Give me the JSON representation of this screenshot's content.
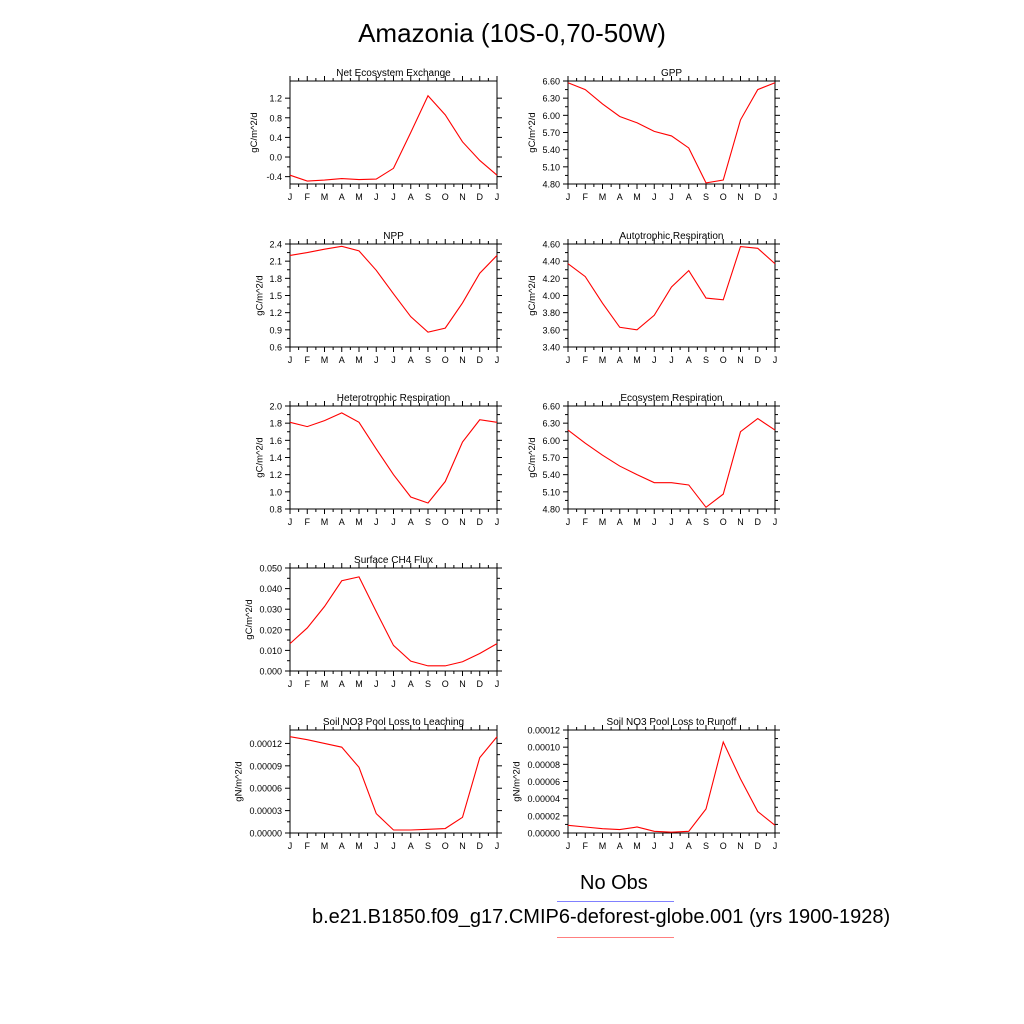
{
  "title": "Amazonia (10S-0,70-50W)",
  "legend": {
    "obs_label": "No Obs",
    "run_label": "b.e21.B1850.f09_g17.CMIP6-deforest-globe.001 (yrs 1900-1928)",
    "obs_color": "#8080ff",
    "run_color": "#ff7f7f"
  },
  "line_color": "#ff0000",
  "chart_data": [
    {
      "type": "line",
      "title": "Net Ecosystem Exchange",
      "ylabel": "gC/m^2/d",
      "xlabel": "",
      "categories": [
        "J",
        "F",
        "M",
        "A",
        "M",
        "J",
        "J",
        "A",
        "S",
        "O",
        "N",
        "D",
        "J"
      ],
      "yticks": [
        -0.4,
        0.0,
        0.4,
        0.8,
        1.2
      ],
      "ytick_labels": [
        "-0.4",
        "0.0",
        "0.4",
        "0.8",
        "1.2"
      ],
      "ylim": [
        -0.55,
        1.55
      ],
      "series": [
        {
          "name": "b.e21.B1850.f09_g17.CMIP6-deforest-globe.001",
          "values": [
            -0.37,
            -0.49,
            -0.47,
            -0.44,
            -0.46,
            -0.45,
            -0.23,
            0.5,
            1.25,
            0.86,
            0.31,
            -0.07,
            -0.37
          ]
        }
      ]
    },
    {
      "type": "line",
      "title": "GPP",
      "ylabel": "gC/m^2/d",
      "xlabel": "",
      "categories": [
        "J",
        "F",
        "M",
        "A",
        "M",
        "J",
        "J",
        "A",
        "S",
        "O",
        "N",
        "D",
        "J"
      ],
      "yticks": [
        4.8,
        5.1,
        5.4,
        5.7,
        6.0,
        6.3,
        6.6
      ],
      "ytick_labels": [
        "4.80",
        "5.10",
        "5.40",
        "5.70",
        "6.00",
        "6.30",
        "6.60"
      ],
      "ylim": [
        4.8,
        6.6
      ],
      "series": [
        {
          "name": "b.e21.B1850.f09_g17.CMIP6-deforest-globe.001",
          "values": [
            6.57,
            6.45,
            6.2,
            5.98,
            5.87,
            5.72,
            5.64,
            5.43,
            4.82,
            4.87,
            5.92,
            6.45,
            6.57
          ]
        }
      ]
    },
    {
      "type": "line",
      "title": "NPP",
      "ylabel": "gC/m^2/d",
      "xlabel": "",
      "categories": [
        "J",
        "F",
        "M",
        "A",
        "M",
        "J",
        "J",
        "A",
        "S",
        "O",
        "N",
        "D",
        "J"
      ],
      "yticks": [
        0.6,
        0.9,
        1.2,
        1.5,
        1.8,
        2.1,
        2.4
      ],
      "ytick_labels": [
        "0.6",
        "0.9",
        "1.2",
        "1.5",
        "1.8",
        "2.1",
        "2.4"
      ],
      "ylim": [
        0.6,
        2.4
      ],
      "series": [
        {
          "name": "b.e21.B1850.f09_g17.CMIP6-deforest-globe.001",
          "values": [
            2.2,
            2.25,
            2.31,
            2.36,
            2.28,
            1.94,
            1.53,
            1.13,
            0.86,
            0.93,
            1.37,
            1.89,
            2.2
          ]
        }
      ]
    },
    {
      "type": "line",
      "title": "Autotrophic Respiration",
      "ylabel": "gC/m^2/d",
      "xlabel": "",
      "categories": [
        "J",
        "F",
        "M",
        "A",
        "M",
        "J",
        "J",
        "A",
        "S",
        "O",
        "N",
        "D",
        "J"
      ],
      "yticks": [
        3.4,
        3.6,
        3.8,
        4.0,
        4.2,
        4.4,
        4.6
      ],
      "ytick_labels": [
        "3.40",
        "3.60",
        "3.80",
        "4.00",
        "4.20",
        "4.40",
        "4.60"
      ],
      "ylim": [
        3.4,
        4.6
      ],
      "series": [
        {
          "name": "b.e21.B1850.f09_g17.CMIP6-deforest-globe.001",
          "values": [
            4.37,
            4.22,
            3.91,
            3.63,
            3.6,
            3.77,
            4.1,
            4.29,
            3.97,
            3.95,
            4.57,
            4.55,
            4.37
          ]
        }
      ]
    },
    {
      "type": "line",
      "title": "Heterotrophic Respiration",
      "ylabel": "gC/m^2/d",
      "xlabel": "",
      "categories": [
        "J",
        "F",
        "M",
        "A",
        "M",
        "J",
        "J",
        "A",
        "S",
        "O",
        "N",
        "D",
        "J"
      ],
      "yticks": [
        0.8,
        1.0,
        1.2,
        1.4,
        1.6,
        1.8,
        2.0
      ],
      "ytick_labels": [
        "0.8",
        "1.0",
        "1.2",
        "1.4",
        "1.6",
        "1.8",
        "2.0"
      ],
      "ylim": [
        0.8,
        2.0
      ],
      "series": [
        {
          "name": "b.e21.B1850.f09_g17.CMIP6-deforest-globe.001",
          "values": [
            1.81,
            1.76,
            1.83,
            1.92,
            1.81,
            1.5,
            1.2,
            0.94,
            0.87,
            1.12,
            1.58,
            1.84,
            1.81
          ]
        }
      ]
    },
    {
      "type": "line",
      "title": "Ecosystem Respiration",
      "ylabel": "gC/m^2/d",
      "xlabel": "",
      "categories": [
        "J",
        "F",
        "M",
        "A",
        "M",
        "J",
        "J",
        "A",
        "S",
        "O",
        "N",
        "D",
        "J"
      ],
      "yticks": [
        4.8,
        5.1,
        5.4,
        5.7,
        6.0,
        6.3,
        6.6
      ],
      "ytick_labels": [
        "4.80",
        "5.10",
        "5.40",
        "5.70",
        "6.00",
        "6.30",
        "6.60"
      ],
      "ylim": [
        4.8,
        6.6
      ],
      "series": [
        {
          "name": "b.e21.B1850.f09_g17.CMIP6-deforest-globe.001",
          "values": [
            6.18,
            5.95,
            5.74,
            5.55,
            5.4,
            5.26,
            5.26,
            5.22,
            4.83,
            5.06,
            6.15,
            6.38,
            6.18
          ]
        }
      ]
    },
    {
      "type": "line",
      "title": "Surface CH4 Flux",
      "ylabel": "gC/m^2/d",
      "xlabel": "",
      "categories": [
        "J",
        "F",
        "M",
        "A",
        "M",
        "J",
        "J",
        "A",
        "S",
        "O",
        "N",
        "D",
        "J"
      ],
      "yticks": [
        0.0,
        0.01,
        0.02,
        0.03,
        0.04,
        0.05
      ],
      "ytick_labels": [
        "0.000",
        "0.010",
        "0.020",
        "0.030",
        "0.040",
        "0.050"
      ],
      "ylim": [
        0.0,
        0.05
      ],
      "series": [
        {
          "name": "b.e21.B1850.f09_g17.CMIP6-deforest-globe.001",
          "values": [
            0.0133,
            0.0209,
            0.0313,
            0.0438,
            0.0457,
            0.0288,
            0.0124,
            0.0048,
            0.0025,
            0.0025,
            0.0045,
            0.0085,
            0.0133
          ]
        }
      ]
    },
    {
      "type": "line",
      "title": "Soil NO3 Pool Loss to Leaching",
      "ylabel": "gN/m^2/d",
      "xlabel": "",
      "categories": [
        "J",
        "F",
        "M",
        "A",
        "M",
        "J",
        "J",
        "A",
        "S",
        "O",
        "N",
        "D",
        "J"
      ],
      "yticks": [
        0.0,
        3e-05,
        6e-05,
        9e-05,
        0.00012
      ],
      "ytick_labels": [
        "0.00000",
        "0.00003",
        "0.00006",
        "0.00009",
        "0.00012"
      ],
      "ylim": [
        0.0,
        0.000138
      ],
      "series": [
        {
          "name": "b.e21.B1850.f09_g17.CMIP6-deforest-globe.001",
          "values": [
            0.000129,
            0.000125,
            0.00012,
            0.000115,
            8.8e-05,
            2.6e-05,
            4e-06,
            4e-06,
            5e-06,
            6e-06,
            2.1e-05,
            0.000101,
            0.000129
          ]
        }
      ]
    },
    {
      "type": "line",
      "title": "Soil NO3 Pool Loss to Runoff",
      "ylabel": "gN/m^2/d",
      "xlabel": "",
      "categories": [
        "J",
        "F",
        "M",
        "A",
        "M",
        "J",
        "J",
        "A",
        "S",
        "O",
        "N",
        "D",
        "J"
      ],
      "yticks": [
        0.0,
        2e-05,
        4e-05,
        6e-05,
        8e-05,
        0.0001,
        0.00012
      ],
      "ytick_labels": [
        "0.00000",
        "0.00002",
        "0.00004",
        "0.00006",
        "0.00008",
        "0.00010",
        "0.00012"
      ],
      "ylim": [
        0.0,
        0.00012
      ],
      "series": [
        {
          "name": "b.e21.B1850.f09_g17.CMIP6-deforest-globe.001",
          "values": [
            9e-06,
            7e-06,
            5e-06,
            4e-06,
            7e-06,
            2e-06,
            1e-06,
            2e-06,
            2.8e-05,
            0.000106,
            6.3e-05,
            2.5e-05,
            9e-06
          ]
        }
      ]
    }
  ]
}
